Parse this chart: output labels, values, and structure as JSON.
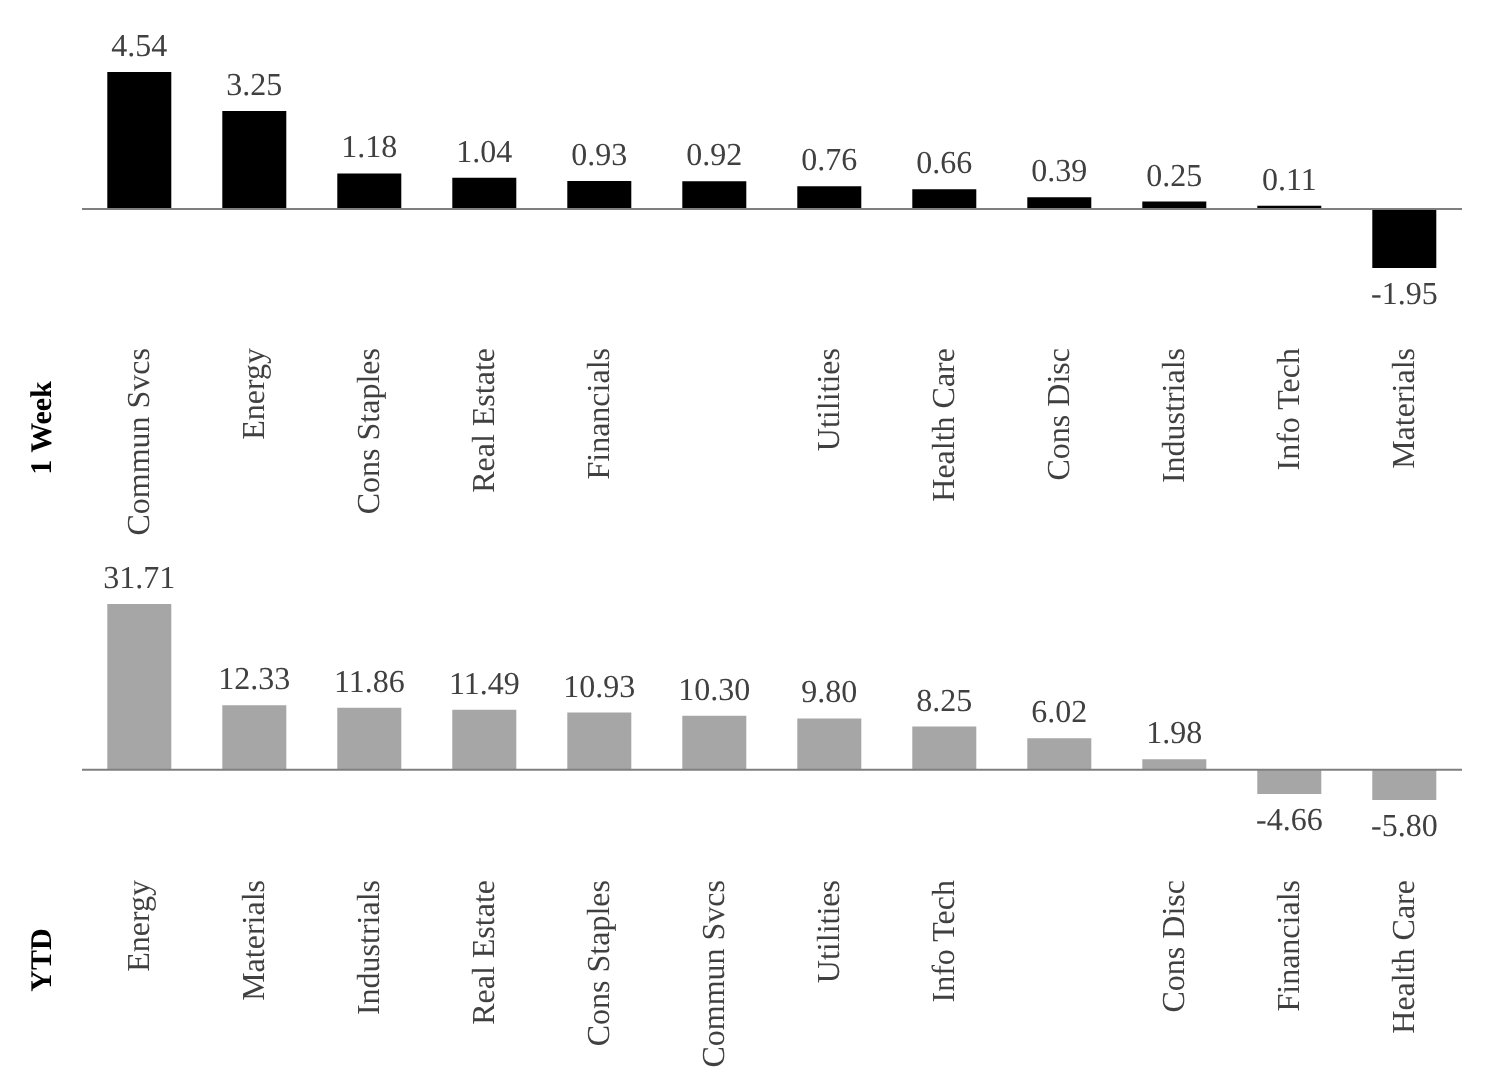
{
  "chart_data": [
    {
      "type": "bar",
      "ylabel": "1 Week",
      "categories": [
        "Commun Svcs",
        "Energy",
        "Cons Staples",
        "Real Estate",
        "Financials",
        null,
        "Utilities",
        "Health Care",
        "Cons Disc",
        "Industrials",
        "Info Tech",
        "Materials"
      ],
      "values": [
        4.54,
        3.25,
        1.18,
        1.04,
        0.93,
        0.92,
        0.76,
        0.66,
        0.39,
        0.25,
        0.11,
        -1.95
      ],
      "value_labels": [
        "4.54",
        "3.25",
        "1.18",
        "1.04",
        "0.93",
        "0.92",
        "0.76",
        "0.66",
        "0.39",
        "0.25",
        "0.11",
        "-1.95"
      ],
      "color": "#000000",
      "grid": false,
      "legend": false
    },
    {
      "type": "bar",
      "ylabel": "YTD",
      "categories": [
        "Energy",
        "Materials",
        "Industrials",
        "Real Estate",
        "Cons Staples",
        "Commun Svcs",
        "Utilities",
        "Info Tech",
        null,
        "Cons Disc",
        "Financials",
        "Health Care"
      ],
      "values": [
        31.71,
        12.33,
        11.86,
        11.49,
        10.93,
        10.3,
        9.8,
        8.25,
        6.02,
        1.98,
        -4.66,
        -5.8
      ],
      "value_labels": [
        "31.71",
        "12.33",
        "11.86",
        "11.49",
        "10.93",
        "10.30",
        "9.80",
        "8.25",
        "6.02",
        "1.98",
        "-4.66",
        "-5.80"
      ],
      "color": "#a6a6a6",
      "grid": false,
      "legend": false
    }
  ]
}
